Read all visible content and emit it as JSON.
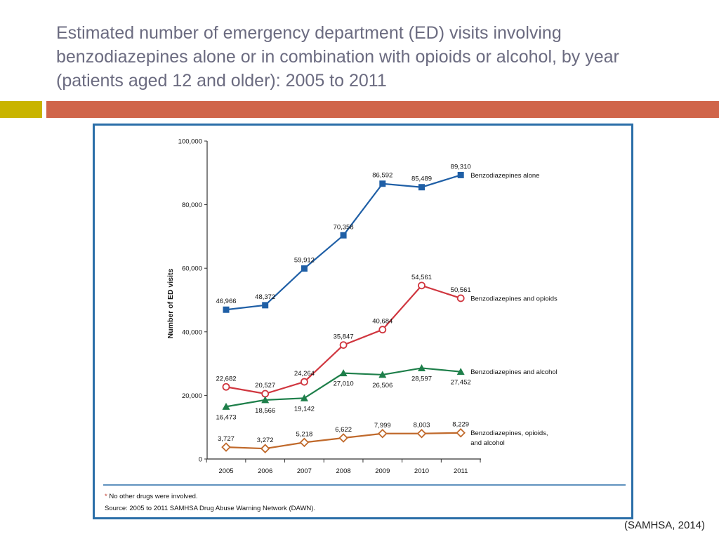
{
  "slide": {
    "title": "Estimated number of emergency department (ED) visits involving benzodiazepines alone or in combination with opioids or alcohol, by year (patients aged 12 and older): 2005 to 2011",
    "citation": "(SAMHSA, 2014)"
  },
  "colors": {
    "title": "#6b6b80",
    "accent_gold": "#c9b400",
    "accent_bar": "#d0654a",
    "frame": "#2a6ea8"
  },
  "chart_data": {
    "type": "line",
    "title": "",
    "xlabel": "",
    "ylabel": "Number of ED visits",
    "x": [
      "2005",
      "2006",
      "2007",
      "2008",
      "2009",
      "2010",
      "2011"
    ],
    "ylim": [
      0,
      100000
    ],
    "yticks": [
      0,
      20000,
      40000,
      60000,
      80000,
      100000
    ],
    "ytick_labels": [
      "0",
      "20,000",
      "40,000",
      "60,000",
      "80,000",
      "100,000"
    ],
    "grid": false,
    "series": [
      {
        "name": "Benzodiazepines alone",
        "values": [
          46966,
          48372,
          59912,
          70358,
          86592,
          85489,
          89310
        ],
        "labels": [
          "46,966",
          "48,372",
          "59,912",
          "70,358",
          "86,592",
          "85,489",
          "89,310"
        ],
        "label_pos": [
          "above",
          "above",
          "above",
          "above",
          "above",
          "above",
          "above"
        ],
        "marker": "square",
        "color": "#1f5fa6"
      },
      {
        "name": "Benzodiazepines and opioids",
        "values": [
          22682,
          20527,
          24264,
          35847,
          40684,
          54561,
          50561
        ],
        "labels": [
          "22,682",
          "20,527",
          "24,264",
          "35,847",
          "40,684",
          "54,561",
          "50,561"
        ],
        "label_pos": [
          "above",
          "above",
          "above",
          "above",
          "above",
          "above",
          "above"
        ],
        "marker": "circle",
        "color": "#d0363f"
      },
      {
        "name": "Benzodiazepines and alcohol",
        "values": [
          16473,
          18566,
          19142,
          27010,
          26506,
          28597,
          27452
        ],
        "labels": [
          "16,473",
          "18,566",
          "19,142",
          "27,010",
          "26,506",
          "28,597",
          "27,452"
        ],
        "label_pos": [
          "below",
          "below",
          "below",
          "below",
          "below",
          "below",
          "below"
        ],
        "marker": "triangle",
        "color": "#1e7f4a"
      },
      {
        "name": "Benzodiazepines, opioids, and alcohol",
        "legend_lines": [
          "Benzodiazepines, opioids,",
          "and alcohol"
        ],
        "values": [
          3727,
          3272,
          5218,
          6622,
          7999,
          8003,
          8229
        ],
        "labels": [
          "3,727",
          "3,272",
          "5,218",
          "6,622",
          "7,999",
          "8,003",
          "8,229"
        ],
        "label_pos": [
          "above",
          "above",
          "above",
          "above",
          "above",
          "above",
          "above"
        ],
        "marker": "diamond",
        "color": "#c0692b"
      }
    ],
    "footnote_mark": "*",
    "footnote_text": "No other drugs were involved.",
    "source": "Source: 2005 to 2011 SAMHSA Drug Abuse Warning Network (DAWN)."
  }
}
